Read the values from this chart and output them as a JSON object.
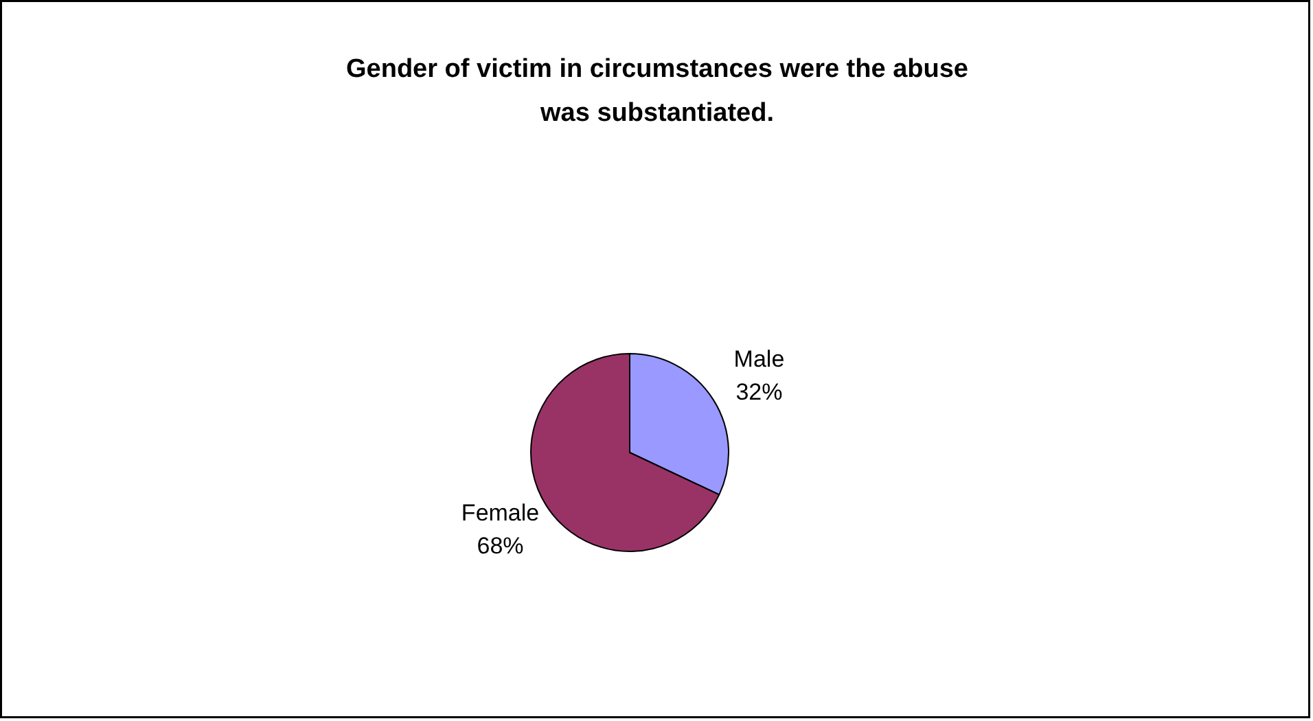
{
  "chart_data": {
    "type": "pie",
    "title": "Gender of victim in circumstances were the abuse was substantiated.",
    "categories": [
      "Male",
      "Female"
    ],
    "values": [
      32,
      68
    ],
    "colors": [
      "#9999ff",
      "#993366"
    ],
    "value_labels": [
      "32%",
      "68%"
    ]
  }
}
